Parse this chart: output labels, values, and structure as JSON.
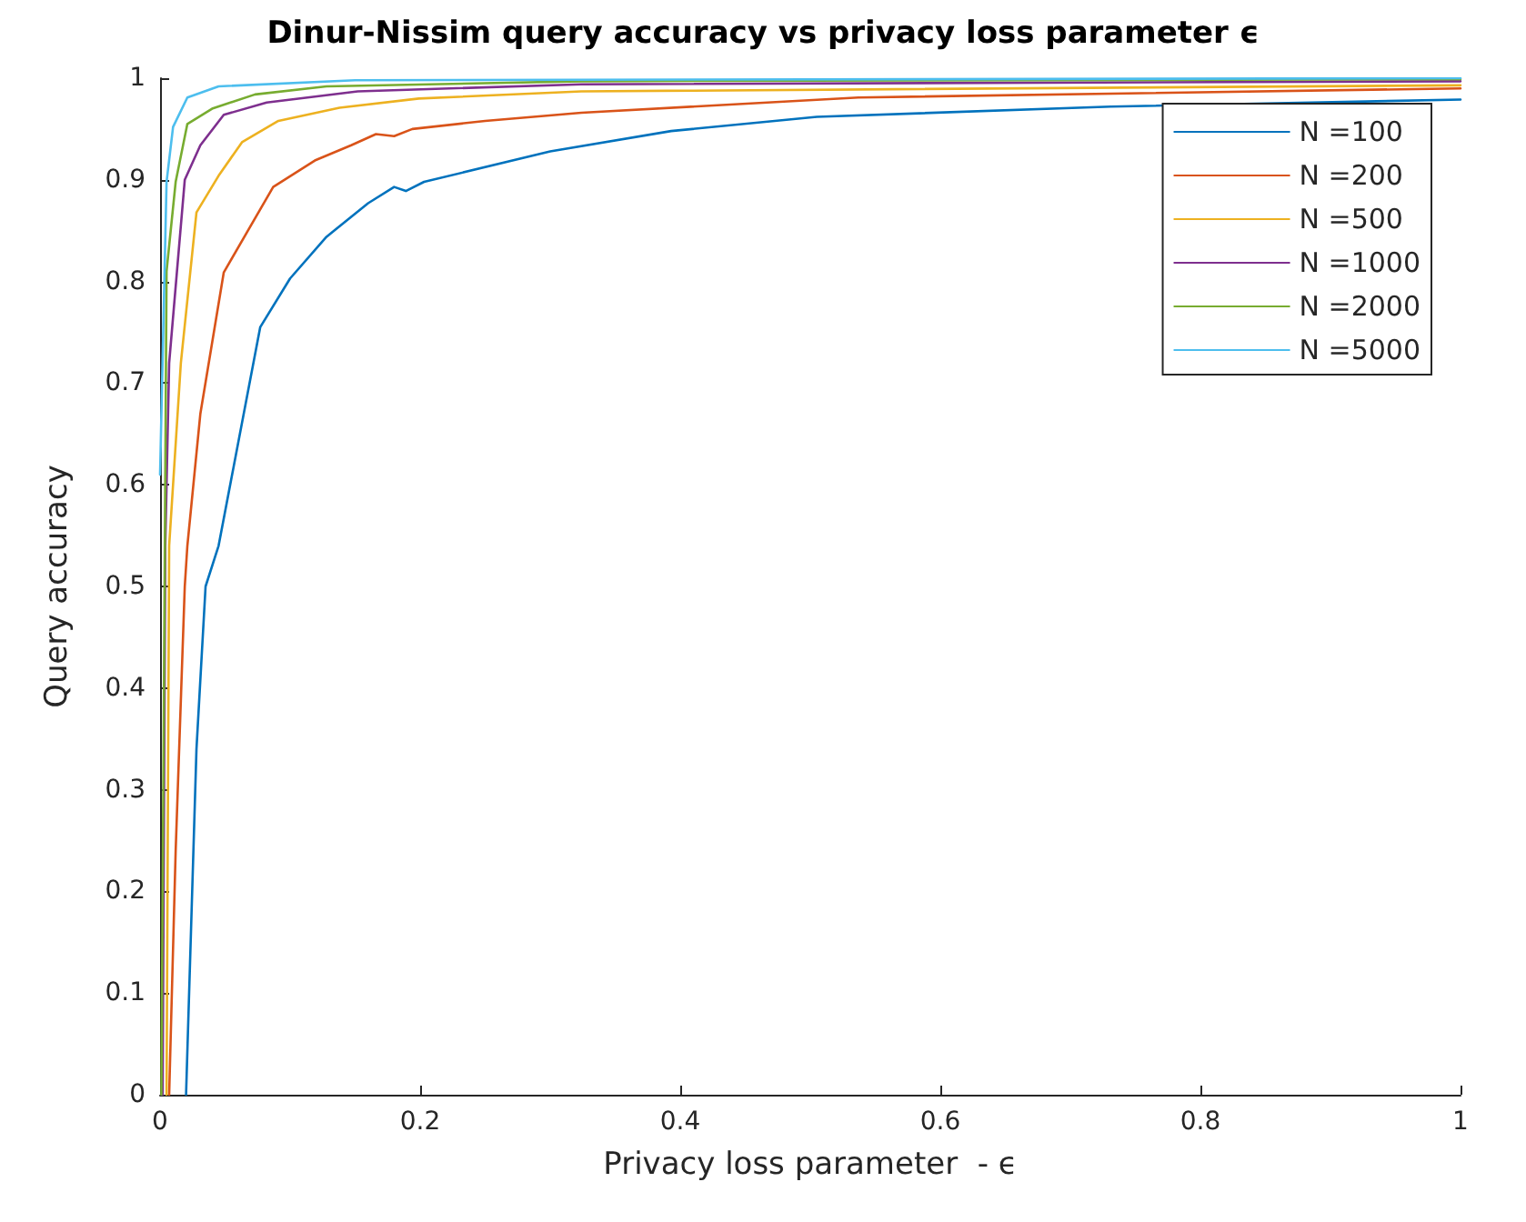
{
  "chart_data": {
    "type": "line",
    "title": "Dinur-Nissim query accuracy vs privacy loss parameter ϵ",
    "xlabel": "Privacy loss parameter  - ϵ",
    "ylabel": "Query accuracy",
    "xlim": [
      0,
      1
    ],
    "xticks": [
      0,
      0.2,
      0.4,
      0.6,
      0.8,
      1
    ],
    "ylim": [
      0,
      1
    ],
    "yticks": [
      0,
      0.1,
      0.2,
      0.3,
      0.4,
      0.5,
      0.6,
      0.7,
      0.8,
      0.9,
      1
    ],
    "grid": false,
    "legend": "top right",
    "marker": "none",
    "line_style": "solid",
    "series": [
      {
        "name": "N =100",
        "color": "#0072bd",
        "x": [
          0.02,
          0.028,
          0.035,
          0.045,
          0.077,
          0.1,
          0.128,
          0.16,
          0.18,
          0.189,
          0.203,
          0.3,
          0.393,
          0.505,
          0.731,
          1.0
        ],
        "values": [
          0,
          0.34,
          0.5,
          0.54,
          0.755,
          0.803,
          0.844,
          0.877,
          0.893,
          0.889,
          0.898,
          0.928,
          0.948,
          0.962,
          0.972,
          0.979
        ]
      },
      {
        "name": "N =200",
        "color": "#d95319",
        "x": [
          0.007,
          0.012,
          0.019,
          0.021,
          0.031,
          0.049,
          0.087,
          0.119,
          0.147,
          0.166,
          0.18,
          0.194,
          0.25,
          0.324,
          0.537,
          1.0
        ],
        "values": [
          0,
          0.24,
          0.5,
          0.54,
          0.67,
          0.809,
          0.893,
          0.919,
          0.934,
          0.945,
          0.943,
          0.95,
          0.958,
          0.966,
          0.981,
          0.99
        ]
      },
      {
        "name": "N =500",
        "color": "#edb120",
        "x": [
          0.005,
          0.007,
          0.016,
          0.028,
          0.045,
          0.063,
          0.091,
          0.138,
          0.199,
          0.324,
          1.0
        ],
        "values": [
          0,
          0.54,
          0.72,
          0.868,
          0.904,
          0.937,
          0.958,
          0.971,
          0.98,
          0.987,
          0.993
        ]
      },
      {
        "name": "N =1000",
        "color": "#7e2f8e",
        "x": [
          0.002,
          0.004,
          0.007,
          0.019,
          0.031,
          0.049,
          0.082,
          0.152,
          0.324,
          1.0
        ],
        "values": [
          0,
          0.54,
          0.72,
          0.9,
          0.934,
          0.964,
          0.976,
          0.987,
          0.994,
          0.997
        ]
      },
      {
        "name": "N =2000",
        "color": "#77ac30",
        "x": [
          0.001,
          0.005,
          0.012,
          0.021,
          0.04,
          0.073,
          0.128,
          0.324,
          1.0
        ],
        "values": [
          0,
          0.81,
          0.898,
          0.955,
          0.97,
          0.984,
          0.992,
          0.997,
          0.999
        ]
      },
      {
        "name": "N =5000",
        "color": "#4dbeee",
        "x": [
          0.0,
          0.005,
          0.01,
          0.021,
          0.045,
          0.15,
          1.0
        ],
        "values": [
          0.61,
          0.898,
          0.952,
          0.981,
          0.992,
          0.998,
          1.0
        ]
      }
    ]
  }
}
